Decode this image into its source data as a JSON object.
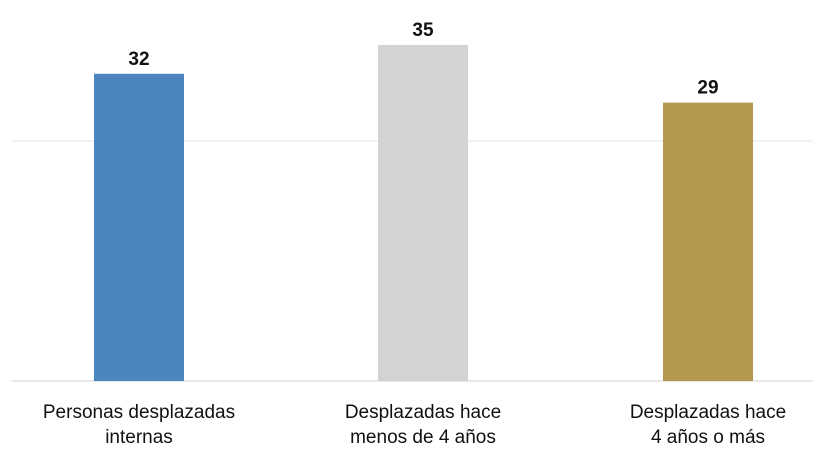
{
  "chart_data": {
    "type": "bar",
    "title": "",
    "xlabel": "",
    "ylabel": "",
    "ylim": [
      0,
      40
    ],
    "grid": true,
    "legend": "none",
    "categories": [
      [
        "Personas desplazadas",
        "internas"
      ],
      [
        "Desplazadas hace",
        "menos de 4 años"
      ],
      [
        "Desplazadas hace",
        "4 años o más"
      ]
    ],
    "values": [
      32,
      35,
      29
    ],
    "data_labels": [
      "32",
      "35",
      "29"
    ],
    "colors": [
      "#4b86c0",
      "#d3d3d3",
      "#b4984e"
    ]
  }
}
